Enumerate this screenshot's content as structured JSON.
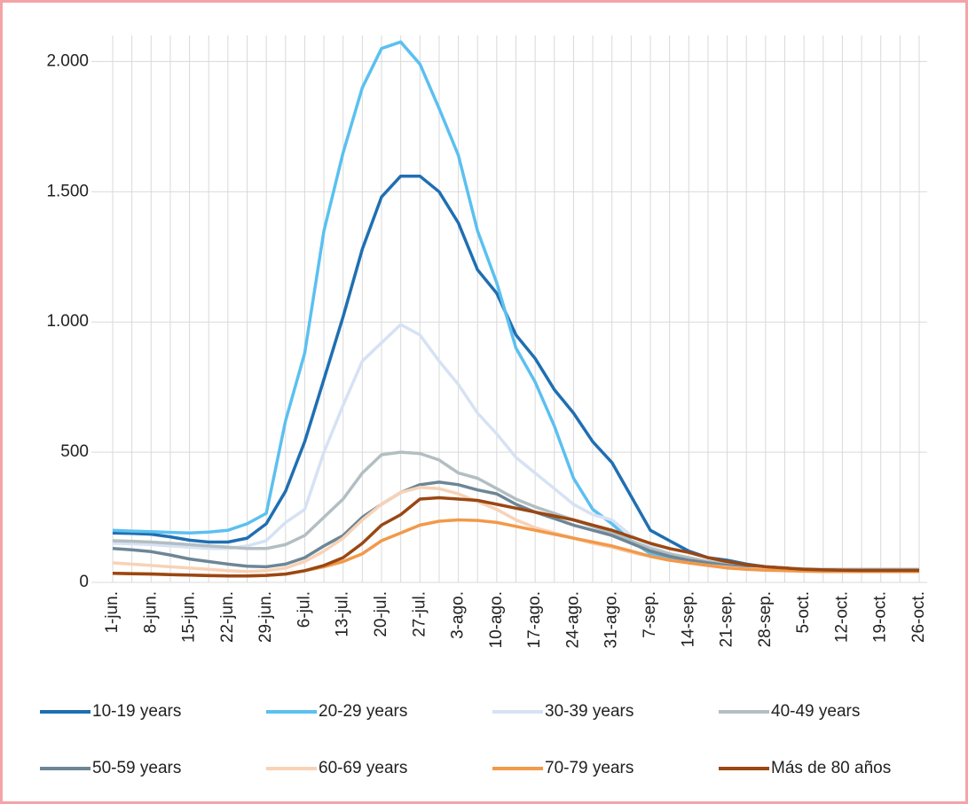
{
  "chart_data": {
    "type": "line",
    "categories": [
      "1-jun.",
      null,
      "8-jun.",
      null,
      "15-jun.",
      null,
      "22-jun.",
      null,
      "29-jun.",
      null,
      "6-jul.",
      null,
      "13-jul.",
      null,
      "20-jul.",
      null,
      "27-jul.",
      null,
      "3-ago.",
      null,
      "10-ago.",
      null,
      "17-ago.",
      null,
      "24-ago.",
      null,
      "31-ago.",
      null,
      "7-sep.",
      null,
      "14-sep.",
      null,
      "21-sep.",
      null,
      "28-sep.",
      null,
      "5-oct.",
      null,
      "12-oct.",
      null,
      "19-oct.",
      null,
      "26-oct."
    ],
    "series": [
      {
        "name": "10-19 years",
        "color": "#1f6fb2",
        "values": [
          190,
          188,
          185,
          175,
          162,
          155,
          155,
          170,
          225,
          350,
          540,
          780,
          1020,
          1280,
          1480,
          1560,
          1560,
          1500,
          1380,
          1200,
          1110,
          950,
          860,
          740,
          650,
          540,
          460,
          330,
          200,
          160,
          120,
          95,
          85,
          70,
          60,
          55,
          50,
          48,
          45,
          45,
          45,
          44,
          43
        ]
      },
      {
        "name": "20-29 years",
        "color": "#5bc0f0",
        "values": [
          200,
          197,
          195,
          192,
          190,
          193,
          200,
          225,
          265,
          620,
          880,
          1350,
          1650,
          1900,
          2050,
          2075,
          1990,
          1820,
          1640,
          1350,
          1150,
          900,
          770,
          600,
          400,
          280,
          225,
          160,
          110,
          90,
          75,
          65,
          60,
          55,
          52,
          50,
          48,
          46,
          45,
          45,
          45,
          45,
          45
        ]
      },
      {
        "name": "30-39 years",
        "color": "#d6e2f4",
        "values": [
          150,
          148,
          145,
          140,
          135,
          130,
          130,
          140,
          160,
          230,
          280,
          500,
          680,
          850,
          920,
          990,
          950,
          850,
          760,
          650,
          570,
          480,
          420,
          360,
          300,
          260,
          240,
          180,
          140,
          110,
          90,
          75,
          65,
          58,
          54,
          50,
          48,
          46,
          45,
          45,
          45,
          45,
          45
        ]
      },
      {
        "name": "40-49 years",
        "color": "#b3bec2",
        "values": [
          160,
          158,
          155,
          150,
          145,
          140,
          135,
          130,
          130,
          145,
          180,
          250,
          320,
          420,
          490,
          500,
          495,
          470,
          420,
          400,
          360,
          320,
          290,
          265,
          240,
          215,
          190,
          160,
          130,
          110,
          95,
          80,
          70,
          62,
          58,
          55,
          52,
          50,
          50,
          50,
          50,
          50,
          50
        ]
      },
      {
        "name": "50-59 years",
        "color": "#6d8696",
        "values": [
          130,
          125,
          118,
          105,
          90,
          80,
          70,
          62,
          60,
          70,
          95,
          140,
          180,
          250,
          300,
          345,
          375,
          385,
          375,
          355,
          340,
          300,
          270,
          245,
          220,
          200,
          180,
          150,
          120,
          100,
          85,
          75,
          65,
          58,
          55,
          52,
          50,
          48,
          47,
          47,
          47,
          47,
          47
        ]
      },
      {
        "name": "60-69 years",
        "color": "#f8d2b6",
        "values": [
          75,
          70,
          65,
          60,
          55,
          50,
          45,
          42,
          45,
          55,
          80,
          120,
          170,
          240,
          300,
          345,
          365,
          360,
          340,
          310,
          280,
          240,
          210,
          190,
          170,
          150,
          135,
          115,
          100,
          85,
          75,
          65,
          58,
          52,
          50,
          48,
          46,
          45,
          45,
          45,
          45,
          45,
          45
        ]
      },
      {
        "name": "70-79 years",
        "color": "#f2994a",
        "values": [
          35,
          34,
          33,
          30,
          28,
          27,
          25,
          25,
          27,
          32,
          45,
          60,
          80,
          110,
          160,
          190,
          220,
          235,
          240,
          238,
          230,
          215,
          200,
          185,
          170,
          155,
          140,
          120,
          100,
          85,
          75,
          65,
          55,
          50,
          47,
          45,
          43,
          42,
          42,
          42,
          42,
          42,
          42
        ]
      },
      {
        "name": "Más de 80 años",
        "color": "#9a4712",
        "values": [
          35,
          33,
          32,
          30,
          28,
          26,
          25,
          25,
          27,
          32,
          45,
          65,
          95,
          150,
          220,
          260,
          320,
          325,
          320,
          315,
          300,
          285,
          270,
          255,
          240,
          220,
          200,
          175,
          150,
          130,
          115,
          95,
          80,
          68,
          60,
          55,
          50,
          48,
          47,
          46,
          46,
          46,
          46
        ]
      }
    ],
    "ylim": [
      0,
      2100
    ],
    "yticks": [
      0,
      500,
      {
        "value": 1000,
        "label": "1.000"
      },
      {
        "value": 1500,
        "label": "1.500"
      },
      {
        "value": 2000,
        "label": "2.000"
      }
    ],
    "grid": true
  }
}
